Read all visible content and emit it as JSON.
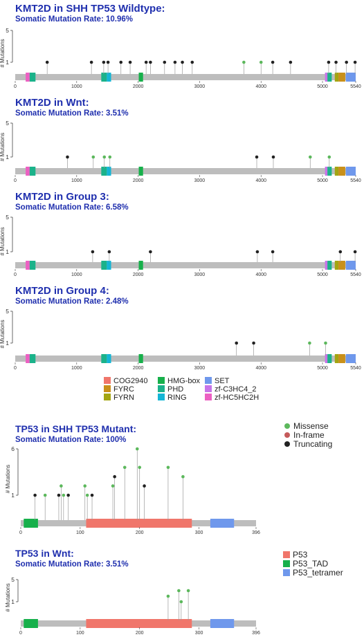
{
  "chart_data": [
    {
      "type": "lollipop",
      "title": "KMT2D in SHH TP53 Wildtype:",
      "subtitle": "Somatic Mutation Rate: 10.96%",
      "ylabel": "# Mutations",
      "ylim": [
        0,
        5
      ],
      "yticks": [
        1,
        5
      ],
      "xlim": [
        0,
        5540
      ],
      "xticks": [
        0,
        1000,
        2000,
        3000,
        4000,
        5000,
        5540
      ],
      "protein_length": 5540,
      "domains": [
        {
          "name": "zf-HC5HC2H",
          "start": 170,
          "end": 235
        },
        {
          "name": "PHD",
          "start": 235,
          "end": 330
        },
        {
          "name": "PHD",
          "start": 1400,
          "end": 1490
        },
        {
          "name": "RING",
          "start": 1490,
          "end": 1560
        },
        {
          "name": "HMG-box",
          "start": 2010,
          "end": 2080
        },
        {
          "name": "zf-C3HC4_2",
          "start": 5040,
          "end": 5080
        },
        {
          "name": "PHD",
          "start": 5080,
          "end": 5150
        },
        {
          "name": "FYRN",
          "start": 5200,
          "end": 5260
        },
        {
          "name": "FYRC",
          "start": 5260,
          "end": 5370
        },
        {
          "name": "SET",
          "start": 5380,
          "end": 5540
        }
      ],
      "mutations": [
        {
          "pos": 520,
          "count": 1,
          "type": "Truncating"
        },
        {
          "pos": 1240,
          "count": 1,
          "type": "Truncating"
        },
        {
          "pos": 1440,
          "count": 1,
          "type": "Truncating"
        },
        {
          "pos": 1510,
          "count": 1,
          "type": "Truncating"
        },
        {
          "pos": 1720,
          "count": 1,
          "type": "Truncating"
        },
        {
          "pos": 1870,
          "count": 1,
          "type": "Truncating"
        },
        {
          "pos": 2130,
          "count": 1,
          "type": "Truncating"
        },
        {
          "pos": 2200,
          "count": 1,
          "type": "Truncating"
        },
        {
          "pos": 2430,
          "count": 1,
          "type": "Truncating"
        },
        {
          "pos": 2600,
          "count": 1,
          "type": "Truncating"
        },
        {
          "pos": 2720,
          "count": 1,
          "type": "Truncating"
        },
        {
          "pos": 2880,
          "count": 1,
          "type": "Truncating"
        },
        {
          "pos": 3720,
          "count": 1,
          "type": "Missense"
        },
        {
          "pos": 4000,
          "count": 1,
          "type": "Missense"
        },
        {
          "pos": 4190,
          "count": 1,
          "type": "Truncating"
        },
        {
          "pos": 4480,
          "count": 1,
          "type": "Truncating"
        },
        {
          "pos": 5100,
          "count": 1,
          "type": "Truncating"
        },
        {
          "pos": 5220,
          "count": 1,
          "type": "Truncating"
        },
        {
          "pos": 5390,
          "count": 1,
          "type": "Truncating"
        },
        {
          "pos": 5530,
          "count": 1,
          "type": "Truncating"
        }
      ]
    },
    {
      "type": "lollipop",
      "title": "KMT2D in Wnt:",
      "subtitle": "Somatic Mutation Rate: 3.51%",
      "ylabel": "# Mutations",
      "ylim": [
        0,
        5
      ],
      "yticks": [
        1,
        5
      ],
      "xlim": [
        0,
        5540
      ],
      "xticks": [
        0,
        1000,
        2000,
        3000,
        4000,
        5000,
        5540
      ],
      "protein_length": 5540,
      "domains": [
        {
          "name": "zf-HC5HC2H",
          "start": 170,
          "end": 235
        },
        {
          "name": "PHD",
          "start": 235,
          "end": 330
        },
        {
          "name": "PHD",
          "start": 1400,
          "end": 1490
        },
        {
          "name": "RING",
          "start": 1490,
          "end": 1560
        },
        {
          "name": "HMG-box",
          "start": 2010,
          "end": 2080
        },
        {
          "name": "zf-C3HC4_2",
          "start": 5040,
          "end": 5080
        },
        {
          "name": "PHD",
          "start": 5080,
          "end": 5150
        },
        {
          "name": "FYRN",
          "start": 5200,
          "end": 5260
        },
        {
          "name": "FYRC",
          "start": 5260,
          "end": 5370
        },
        {
          "name": "SET",
          "start": 5380,
          "end": 5540
        }
      ],
      "mutations": [
        {
          "pos": 850,
          "count": 1,
          "type": "Truncating"
        },
        {
          "pos": 1270,
          "count": 1,
          "type": "Missense"
        },
        {
          "pos": 1450,
          "count": 1,
          "type": "Missense"
        },
        {
          "pos": 1540,
          "count": 1,
          "type": "Missense"
        },
        {
          "pos": 3930,
          "count": 1,
          "type": "Truncating"
        },
        {
          "pos": 4200,
          "count": 1,
          "type": "Truncating"
        },
        {
          "pos": 4800,
          "count": 1,
          "type": "Missense"
        },
        {
          "pos": 5110,
          "count": 1,
          "type": "Missense"
        }
      ]
    },
    {
      "type": "lollipop",
      "title": "KMT2D in Group 3:",
      "subtitle": "Somatic Mutation Rate: 6.58%",
      "ylabel": "# Mutations",
      "ylim": [
        0,
        5
      ],
      "yticks": [
        1,
        5
      ],
      "xlim": [
        0,
        5540
      ],
      "xticks": [
        0,
        1000,
        2000,
        3000,
        4000,
        5000,
        5540
      ],
      "protein_length": 5540,
      "domains": [
        {
          "name": "zf-HC5HC2H",
          "start": 170,
          "end": 235
        },
        {
          "name": "PHD",
          "start": 235,
          "end": 330
        },
        {
          "name": "PHD",
          "start": 1400,
          "end": 1490
        },
        {
          "name": "RING",
          "start": 1490,
          "end": 1560
        },
        {
          "name": "HMG-box",
          "start": 2010,
          "end": 2080
        },
        {
          "name": "zf-C3HC4_2",
          "start": 5040,
          "end": 5080
        },
        {
          "name": "PHD",
          "start": 5080,
          "end": 5150
        },
        {
          "name": "FYRN",
          "start": 5200,
          "end": 5260
        },
        {
          "name": "FYRC",
          "start": 5260,
          "end": 5370
        },
        {
          "name": "SET",
          "start": 5380,
          "end": 5540
        }
      ],
      "mutations": [
        {
          "pos": 1260,
          "count": 1,
          "type": "Truncating"
        },
        {
          "pos": 1530,
          "count": 1,
          "type": "Truncating"
        },
        {
          "pos": 2200,
          "count": 1,
          "type": "Truncating"
        },
        {
          "pos": 3940,
          "count": 1,
          "type": "Truncating"
        },
        {
          "pos": 4190,
          "count": 1,
          "type": "Truncating"
        },
        {
          "pos": 5290,
          "count": 1,
          "type": "Truncating"
        },
        {
          "pos": 5530,
          "count": 1,
          "type": "Truncating"
        }
      ]
    },
    {
      "type": "lollipop",
      "title": "KMT2D in Group 4:",
      "subtitle": "Somatic Mutation Rate: 2.48%",
      "ylabel": "# Mutations",
      "ylim": [
        0,
        5
      ],
      "yticks": [
        1,
        5
      ],
      "xlim": [
        0,
        5540
      ],
      "xticks": [
        0,
        1000,
        2000,
        3000,
        4000,
        5000,
        5540
      ],
      "protein_length": 5540,
      "domains": [
        {
          "name": "zf-HC5HC2H",
          "start": 170,
          "end": 235
        },
        {
          "name": "PHD",
          "start": 235,
          "end": 330
        },
        {
          "name": "PHD",
          "start": 1400,
          "end": 1490
        },
        {
          "name": "RING",
          "start": 1490,
          "end": 1560
        },
        {
          "name": "HMG-box",
          "start": 2010,
          "end": 2080
        },
        {
          "name": "zf-C3HC4_2",
          "start": 5040,
          "end": 5080
        },
        {
          "name": "PHD",
          "start": 5080,
          "end": 5150
        },
        {
          "name": "FYRN",
          "start": 5200,
          "end": 5260
        },
        {
          "name": "FYRC",
          "start": 5260,
          "end": 5370
        },
        {
          "name": "SET",
          "start": 5380,
          "end": 5540
        }
      ],
      "mutations": [
        {
          "pos": 3600,
          "count": 1,
          "type": "Truncating"
        },
        {
          "pos": 3880,
          "count": 1,
          "type": "Truncating"
        },
        {
          "pos": 4790,
          "count": 1,
          "type": "Missense"
        },
        {
          "pos": 5050,
          "count": 1,
          "type": "Missense"
        }
      ]
    },
    {
      "type": "lollipop",
      "title": "TP53 in SHH TP53 Mutant:",
      "subtitle": "Somatic Mutation Rate: 100%",
      "ylabel": "# Mutations",
      "ylim": [
        0,
        6
      ],
      "yticks": [
        1,
        6
      ],
      "xlim": [
        0,
        396
      ],
      "xticks": [
        0,
        100,
        200,
        300,
        396
      ],
      "protein_length": 396,
      "domains": [
        {
          "name": "P53 TAD",
          "start": 5,
          "end": 29
        },
        {
          "name": "P53",
          "start": 110,
          "end": 288
        },
        {
          "name": "P53 tetramer",
          "start": 319,
          "end": 359
        }
      ],
      "mutations": [
        {
          "pos": 24,
          "count": 1,
          "type": "Truncating"
        },
        {
          "pos": 41,
          "count": 1,
          "type": "Missense"
        },
        {
          "pos": 64,
          "count": 1,
          "type": "Truncating"
        },
        {
          "pos": 68,
          "count": 2,
          "type": "Missense"
        },
        {
          "pos": 72,
          "count": 1,
          "type": "Missense"
        },
        {
          "pos": 80,
          "count": 1,
          "type": "Truncating"
        },
        {
          "pos": 108,
          "count": 2,
          "type": "Missense"
        },
        {
          "pos": 112,
          "count": 1,
          "type": "Missense"
        },
        {
          "pos": 120,
          "count": 1,
          "type": "Truncating"
        },
        {
          "pos": 155,
          "count": 2,
          "type": "Missense"
        },
        {
          "pos": 158,
          "count": 3,
          "type": "Truncating"
        },
        {
          "pos": 175,
          "count": 4,
          "type": "Missense"
        },
        {
          "pos": 196,
          "count": 6,
          "type": "Missense"
        },
        {
          "pos": 200,
          "count": 4,
          "type": "Missense"
        },
        {
          "pos": 208,
          "count": 2,
          "type": "Truncating"
        },
        {
          "pos": 248,
          "count": 4,
          "type": "Missense"
        },
        {
          "pos": 273,
          "count": 3,
          "type": "Missense"
        }
      ]
    },
    {
      "type": "lollipop",
      "title": "TP53 in Wnt:",
      "subtitle": "Somatic Mutation Rate: 3.51%",
      "ylabel": "# Mutations",
      "ylim": [
        0,
        5
      ],
      "yticks": [
        1,
        5
      ],
      "xlim": [
        0,
        396
      ],
      "xticks": [
        0,
        100,
        200,
        300,
        396
      ],
      "protein_length": 396,
      "domains": [
        {
          "name": "P53 TAD",
          "start": 5,
          "end": 29
        },
        {
          "name": "P53",
          "start": 110,
          "end": 288
        },
        {
          "name": "P53 tetramer",
          "start": 319,
          "end": 359
        }
      ],
      "mutations": [
        {
          "pos": 248,
          "count": 2,
          "type": "Missense"
        },
        {
          "pos": 266,
          "count": 3,
          "type": "Missense"
        },
        {
          "pos": 270,
          "count": 1,
          "type": "Missense"
        },
        {
          "pos": 282,
          "count": 3,
          "type": "Missense"
        }
      ]
    }
  ],
  "domain_colors": {
    "COG2940": "#f0766b",
    "FYRC": "#c9901a",
    "FYRN": "#a3a512",
    "HMG-box": "#17b04b",
    "PHD": "#1bb28a",
    "RING": "#14b6d6",
    "SET": "#6f98ec",
    "zf-C3HC4_2": "#c774e8",
    "zf-HC5HC2H": "#ec5fc2",
    "P53": "#f0766b",
    "P53 TAD": "#17b04b",
    "P53 tetramer": "#6f98ec"
  },
  "mutation_colors": {
    "Missense": "#5cb85c",
    "In-frame": "#c55a5a",
    "Truncating": "#222222"
  },
  "kmt2d_legend": {
    "col1": [
      "COG2940",
      "FYRC",
      "FYRN"
    ],
    "col2": [
      "HMG-box",
      "PHD",
      "RING"
    ],
    "col3": [
      "SET",
      "zf-C3HC4_2",
      "zf-HC5HC2H"
    ]
  },
  "mutation_legend": [
    "Missense",
    "In-frame",
    "Truncating"
  ],
  "tp53_legend": [
    "P53",
    "P53_TAD",
    "P53_tetramer"
  ],
  "tp53_legend_keys": [
    "P53",
    "P53 TAD",
    "P53 tetramer"
  ]
}
